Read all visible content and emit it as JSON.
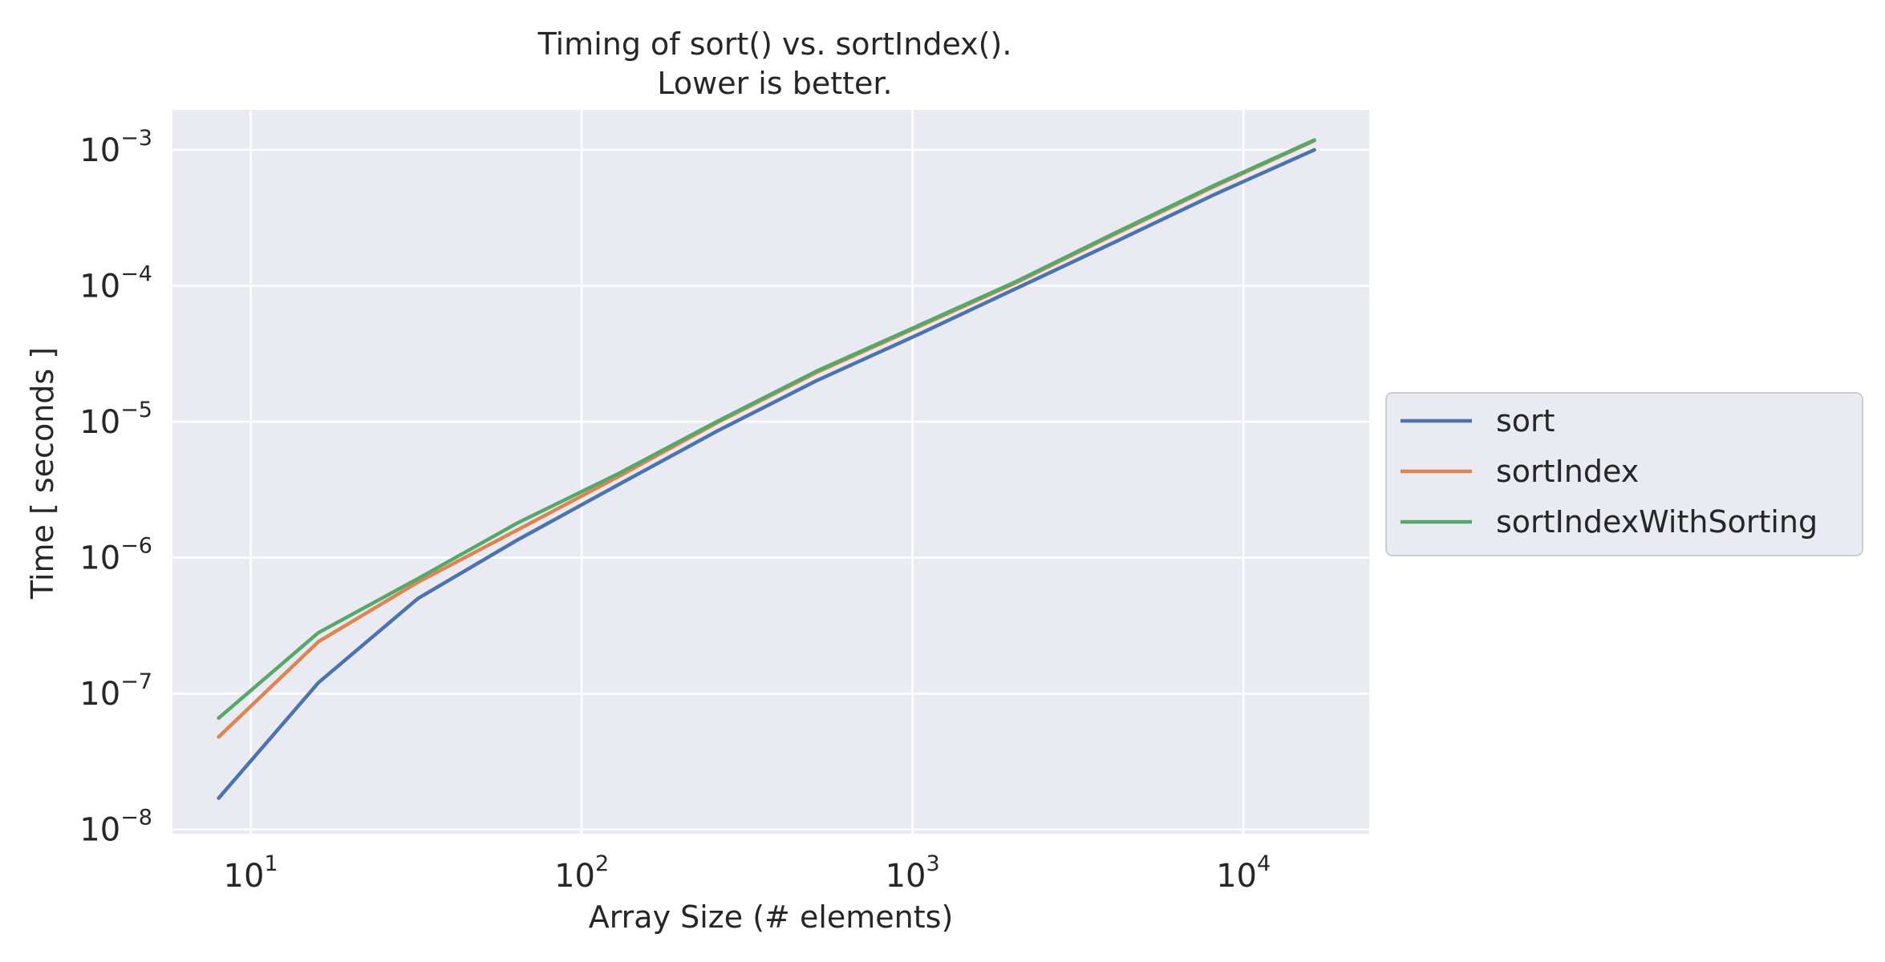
{
  "chart_data": {
    "type": "line",
    "title": "Timing of sort() vs. sortIndex().",
    "subtitle": "Lower is better.",
    "xlabel": "Array Size (# elements)",
    "ylabel": "Time [ seconds ]",
    "xscale": "log",
    "yscale": "log",
    "xlim": [
      5.8,
      24000
    ],
    "ylim": [
      9.3e-09,
      0.00197
    ],
    "grid": true,
    "legend_position": "center-right-outside",
    "x_ticks": [
      {
        "value": 10,
        "base": "10",
        "exp": "1"
      },
      {
        "value": 100,
        "base": "10",
        "exp": "2"
      },
      {
        "value": 1000,
        "base": "10",
        "exp": "3"
      },
      {
        "value": 10000,
        "base": "10",
        "exp": "4"
      }
    ],
    "y_ticks": [
      {
        "value": 1e-08,
        "base": "10",
        "exp": "−8"
      },
      {
        "value": 1e-07,
        "base": "10",
        "exp": "−7"
      },
      {
        "value": 1e-06,
        "base": "10",
        "exp": "−6"
      },
      {
        "value": 1e-05,
        "base": "10",
        "exp": "−5"
      },
      {
        "value": 0.0001,
        "base": "10",
        "exp": "−4"
      },
      {
        "value": 0.001,
        "base": "10",
        "exp": "−3"
      }
    ],
    "x": [
      8,
      16,
      32,
      64,
      128,
      256,
      512,
      1024,
      2048,
      4096,
      8192,
      16384
    ],
    "series": [
      {
        "name": "sort",
        "color": "#4c72b0",
        "values": [
          1.7e-08,
          1.2e-07,
          5e-07,
          1.35e-06,
          3.4e-06,
          8.5e-06,
          2e-05,
          4.3e-05,
          9.5e-05,
          0.00021,
          0.00047,
          0.001
        ]
      },
      {
        "name": "sortIndex",
        "color": "#dd8452",
        "values": [
          4.8e-08,
          2.4e-07,
          6.6e-07,
          1.6e-06,
          3.9e-06,
          9.8e-06,
          2.3e-05,
          4.9e-05,
          0.000105,
          0.00024,
          0.00054,
          0.00117
        ]
      },
      {
        "name": "sortIndexWithSorting",
        "color": "#55a868",
        "values": [
          6.6e-08,
          2.8e-07,
          7e-07,
          1.8e-06,
          4.1e-06,
          1e-05,
          2.35e-05,
          5e-05,
          0.000107,
          0.000245,
          0.00055,
          0.00118
        ]
      }
    ],
    "style": {
      "plot_background": "#eaeaf2",
      "grid_color": "#ffffff",
      "text_color": "#262626"
    }
  }
}
